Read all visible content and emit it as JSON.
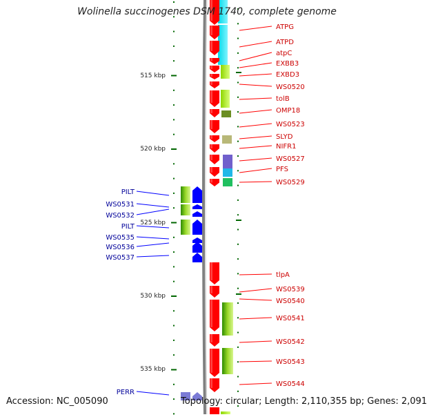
{
  "title": "Wolinella succinogenes DSM 1740, complete genome",
  "footer": {
    "accession": "Accession: NC_005090",
    "topology": "Topology: circular; Length: 2,110,355 bp; Genes: 2,091"
  },
  "scale_labels": [
    "515 kbp",
    "520 kbp",
    "525 kbp",
    "530 kbp",
    "535 kbp"
  ],
  "colors": {
    "forward_gene": "#ff0000",
    "reverse_gene": "#0000ff",
    "forward_label": "#cc0000",
    "reverse_label": "#000099",
    "scale": "#006600",
    "backbone": "#808080"
  },
  "forward_genes": [
    "ATPG",
    "ATPD",
    "atpC",
    "EXBB3",
    "EXBD3",
    "WS0520",
    "tolB",
    "OMP18",
    "WS0523",
    "SLYD",
    "NIFR1",
    "WS0527",
    "PFS",
    "WS0529",
    "tlpA",
    "WS0539",
    "WS0540",
    "WS0541",
    "WS0542",
    "WS0543",
    "WS0544"
  ],
  "reverse_genes": [
    "PILT",
    "WS0531",
    "WS0532",
    "PILT",
    "WS0535",
    "WS0536",
    "WS0537",
    "PERR"
  ]
}
